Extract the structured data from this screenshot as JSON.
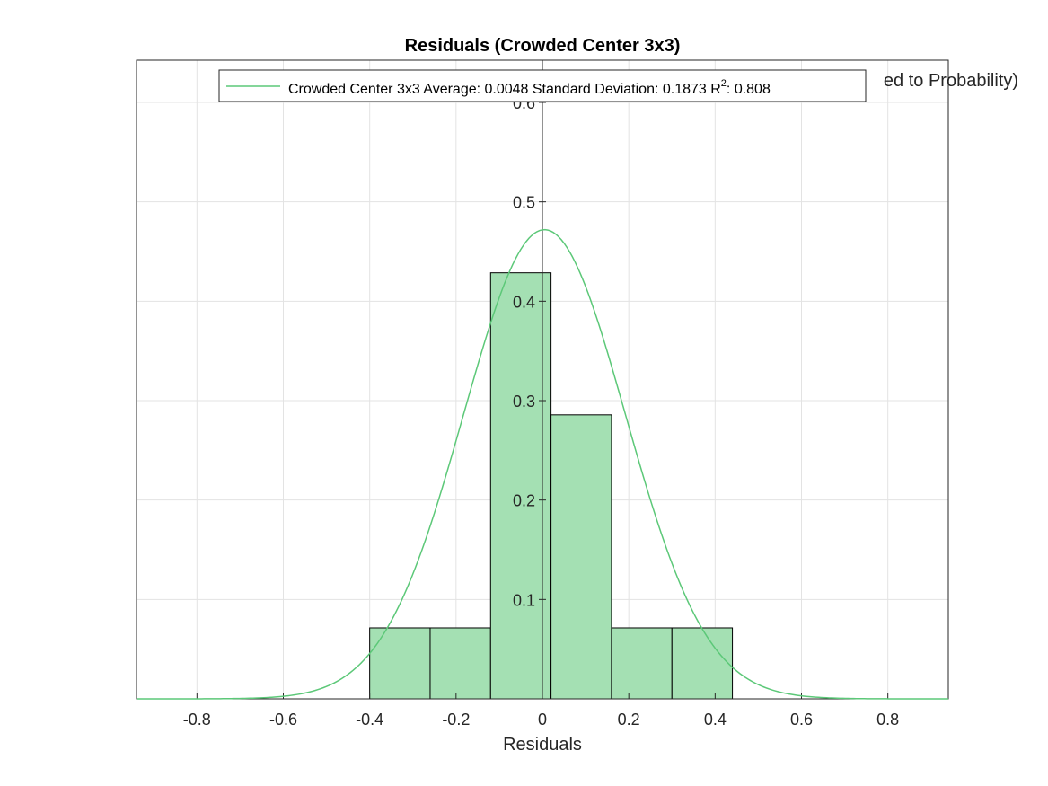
{
  "chart_data": {
    "type": "bar",
    "title": "Residuals (Crowded Center 3x3)",
    "xlabel": "Residuals",
    "ylabel_visible_fragment": "ed to Probability)",
    "xlim": [
      -0.94,
      0.94
    ],
    "ylim": [
      0,
      0.6
    ],
    "xticks": [
      -0.8,
      -0.6,
      -0.4,
      -0.2,
      0,
      0.2,
      0.4,
      0.6,
      0.8
    ],
    "xtick_labels": [
      "-0.8",
      "-0.6",
      "-0.4",
      "-0.2",
      "0",
      "0.2",
      "0.4",
      "0.6",
      "0.8"
    ],
    "yticks": [
      0.1,
      0.2,
      0.3,
      0.4,
      0.5,
      0.6
    ],
    "ytick_labels": [
      "0.1",
      "0.2",
      "0.3",
      "0.4",
      "0.5",
      "0.6"
    ],
    "grid": true,
    "bins": [
      {
        "start": -0.4,
        "end": -0.26,
        "value": 0.0714
      },
      {
        "start": -0.26,
        "end": -0.12,
        "value": 0.0714
      },
      {
        "start": -0.12,
        "end": 0.02,
        "value": 0.4286
      },
      {
        "start": 0.02,
        "end": 0.16,
        "value": 0.2857
      },
      {
        "start": 0.16,
        "end": 0.3,
        "value": 0.0714
      },
      {
        "start": 0.3,
        "end": 0.44,
        "value": 0.0714
      }
    ],
    "fit": {
      "type": "normal",
      "mean": 0.0048,
      "std": 0.1873,
      "peak": 0.472
    },
    "legend": {
      "position": "top",
      "entry": "Crowded Center 3x3 Average: 0.0048 Standard Deviation: 0.1873 R",
      "superscript": "2",
      "entry_suffix": ": 0.808"
    },
    "colors": {
      "bar_fill": "#a4e0b3",
      "bar_edge": "#000000",
      "fit_line": "#5cc878",
      "grid": "#e3e3e3",
      "axis": "#262626"
    }
  }
}
